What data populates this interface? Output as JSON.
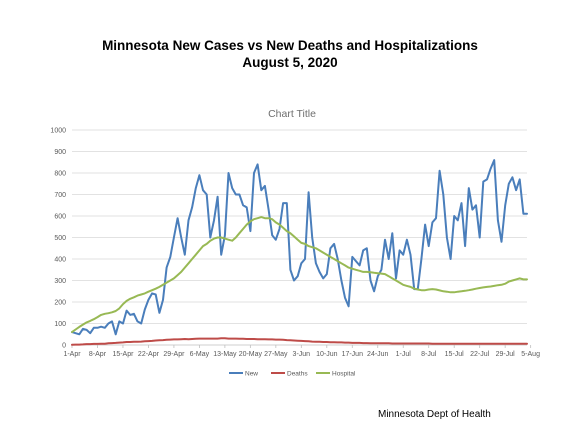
{
  "page": {
    "title_line1": "Minnesota New Cases vs New Deaths and Hospitalizations",
    "title_line2": "August 5, 2020",
    "credit": "Minnesota Dept of Health"
  },
  "chart_data": {
    "type": "line",
    "title": "Chart Title",
    "xlabel": "",
    "ylabel": "",
    "ylim": [
      0,
      1000
    ],
    "yticks": [
      0,
      100,
      200,
      300,
      400,
      500,
      600,
      700,
      800,
      900,
      1000
    ],
    "xticks": [
      "1-Apr",
      "8-Apr",
      "15-Apr",
      "22-Apr",
      "29-Apr",
      "6-May",
      "13-May",
      "20-May",
      "27-May",
      "3-Jun",
      "10-Jun",
      "17-Jun",
      "24-Jun",
      "1-Jul",
      "8-Jul",
      "15-Jul",
      "22-Jul",
      "29-Jul",
      "5-Aug"
    ],
    "grid": true,
    "legend_position": "bottom",
    "colors": {
      "New": "#4a7ebb",
      "Deaths": "#be4b48",
      "Hospital": "#98b954"
    },
    "series": [
      {
        "name": "New",
        "values": [
          60,
          55,
          50,
          75,
          70,
          55,
          80,
          80,
          85,
          80,
          100,
          110,
          50,
          110,
          100,
          160,
          140,
          145,
          110,
          100,
          165,
          210,
          240,
          235,
          150,
          210,
          360,
          410,
          500,
          590,
          500,
          420,
          580,
          640,
          730,
          790,
          720,
          700,
          500,
          580,
          690,
          420,
          510,
          800,
          730,
          700,
          700,
          650,
          640,
          530,
          800,
          840,
          720,
          740,
          630,
          510,
          490,
          540,
          660,
          660,
          350,
          300,
          320,
          380,
          400,
          710,
          500,
          380,
          340,
          310,
          330,
          450,
          470,
          400,
          300,
          220,
          180,
          410,
          390,
          370,
          440,
          450,
          300,
          250,
          320,
          350,
          490,
          400,
          520,
          310,
          440,
          420,
          490,
          420,
          260,
          260,
          400,
          560,
          460,
          570,
          590,
          810,
          700,
          500,
          400,
          600,
          580,
          660,
          460,
          730,
          630,
          650,
          500,
          760,
          770,
          820,
          860,
          580,
          480,
          650,
          750,
          780,
          720,
          770,
          610,
          610
        ]
      },
      {
        "name": "Deaths",
        "values": [
          1,
          2,
          2,
          3,
          4,
          4,
          5,
          5,
          6,
          6,
          8,
          9,
          10,
          11,
          12,
          14,
          14,
          15,
          15,
          16,
          17,
          18,
          19,
          21,
          22,
          23,
          24,
          25,
          26,
          26,
          27,
          28,
          27,
          28,
          29,
          30,
          30,
          30,
          30,
          30,
          30,
          31,
          31,
          30,
          30,
          30,
          29,
          29,
          28,
          28,
          28,
          27,
          27,
          27,
          26,
          26,
          25,
          25,
          24,
          23,
          22,
          21,
          20,
          19,
          18,
          17,
          16,
          15,
          15,
          14,
          14,
          13,
          13,
          12,
          12,
          11,
          11,
          10,
          10,
          10,
          9,
          9,
          8,
          8,
          8,
          8,
          8,
          8,
          7,
          7,
          7,
          7,
          7,
          7,
          7,
          7,
          7,
          7,
          7,
          6,
          6,
          6,
          6,
          6,
          6,
          6,
          6,
          6,
          6,
          6,
          6,
          6,
          6,
          6,
          6,
          6,
          6,
          6,
          6,
          6,
          6,
          6,
          6,
          6,
          6,
          6
        ]
      },
      {
        "name": "Hospital",
        "values": [
          60,
          72,
          84,
          95,
          105,
          112,
          120,
          130,
          140,
          145,
          148,
          152,
          158,
          170,
          190,
          205,
          215,
          222,
          230,
          235,
          240,
          248,
          255,
          262,
          270,
          280,
          290,
          300,
          310,
          325,
          340,
          360,
          380,
          400,
          420,
          440,
          460,
          470,
          485,
          495,
          500,
          500,
          495,
          490,
          485,
          500,
          520,
          540,
          560,
          575,
          585,
          590,
          595,
          590,
          590,
          585,
          570,
          560,
          545,
          530,
          520,
          505,
          490,
          475,
          470,
          460,
          455,
          450,
          440,
          430,
          420,
          410,
          400,
          390,
          380,
          370,
          360,
          355,
          350,
          345,
          340,
          340,
          338,
          336,
          334,
          332,
          330,
          320,
          310,
          300,
          290,
          280,
          275,
          270,
          262,
          258,
          255,
          255,
          258,
          260,
          258,
          254,
          250,
          248,
          245,
          245,
          248,
          250,
          252,
          255,
          258,
          262,
          265,
          268,
          270,
          272,
          275,
          278,
          280,
          285,
          295,
          300,
          305,
          310,
          305,
          305
        ]
      }
    ]
  }
}
